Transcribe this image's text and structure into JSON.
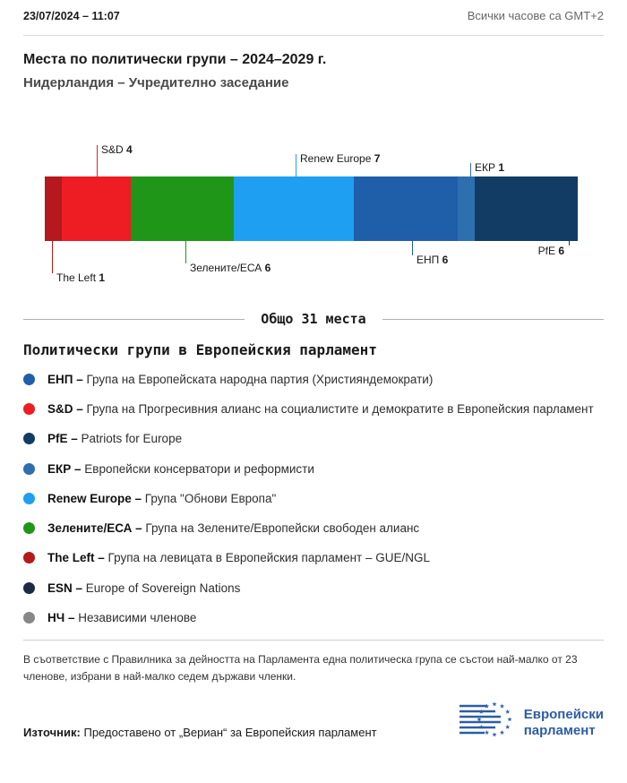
{
  "header": {
    "date": "23/07/2024 – 11:07",
    "timezone_note": "Всички часове са GMT+2"
  },
  "title": "Места по политически групи – 2024–2029 г.",
  "subtitle": "Нидерландия – Учредително заседание",
  "chart_data": {
    "type": "bar",
    "orientation": "horizontal-stacked",
    "title": "Места по политически групи – 2024–2029 г.",
    "total_seats": 31,
    "total_label": "Общо 31 места",
    "segments": [
      {
        "group": "The Left",
        "seats": 1,
        "color": "#b3191d",
        "label_position": "below"
      },
      {
        "group": "S&D",
        "seats": 4,
        "color": "#ee1c23",
        "label_position": "above"
      },
      {
        "group": "Зелените/ЕСА",
        "seats": 6,
        "color": "#1f9617",
        "label_position": "below"
      },
      {
        "group": "Renew Europe",
        "seats": 7,
        "color": "#1e9ff2",
        "label_position": "above"
      },
      {
        "group": "ЕНП",
        "seats": 6,
        "color": "#1f5fa9",
        "label_position": "below"
      },
      {
        "group": "ЕКР",
        "seats": 1,
        "color": "#2e6fae",
        "label_position": "above"
      },
      {
        "group": "PfE",
        "seats": 6,
        "color": "#123c63",
        "label_position": "below"
      }
    ]
  },
  "legend": {
    "heading": "Политически групи в Европейския парламент",
    "items": [
      {
        "abbr": "ЕНП",
        "label": "ЕНП –",
        "color": "#1f5fa9",
        "description": "Група на Европейската народна партия (Християндемократи)"
      },
      {
        "abbr": "S&D",
        "label": "S&D –",
        "color": "#ee1c23",
        "description": "Група на Прогресивния алианс на социалистите и демократите в Европейския парламент"
      },
      {
        "abbr": "PfE",
        "label": "PfE –",
        "color": "#123c63",
        "description": "Patriots for Europe"
      },
      {
        "abbr": "ЕКР",
        "label": "ЕКР –",
        "color": "#2e6fae",
        "description": "Европейски консерватори и реформисти"
      },
      {
        "abbr": "Renew Europe",
        "label": "Renew Europe –",
        "color": "#1e9ff2",
        "description": "Група \"Обнови Европа\""
      },
      {
        "abbr": "Зелените/ЕСА",
        "label": "Зелените/ЕСА –",
        "color": "#1f9617",
        "description": "Група на Зелените/Европейски свободен алианс"
      },
      {
        "abbr": "The Left",
        "label": "The Left –",
        "color": "#b3191d",
        "description": "Група на левицата в Европейския парламент – GUE/NGL"
      },
      {
        "abbr": "ESN",
        "label": "ESN –",
        "color": "#1a2b45",
        "description": "Europe of Sovereign Nations"
      },
      {
        "abbr": "НЧ",
        "label": "НЧ –",
        "color": "#878787",
        "description": "Независими членове"
      }
    ]
  },
  "footnote": "В съответствие с Правилника за дейността на Парламента една политическа група се състои най-малко от 23 членове, избрани в най-малко седем държави членки.",
  "footer": {
    "source_label": "Източник:",
    "source_text": "Предоставено от „Вериан“ за Европейския парламент",
    "logo_line1": "Европейски",
    "logo_line2": "парламент",
    "logo_color": "#2d5da5"
  }
}
